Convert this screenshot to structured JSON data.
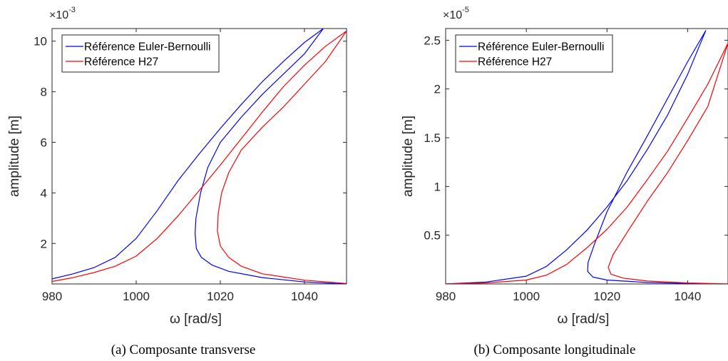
{
  "chart_data": [
    {
      "type": "line",
      "caption": "(a) Composante transverse",
      "xlabel": "ω [rad/s]",
      "ylabel": "amplitude [m]",
      "exponent_base": "×10",
      "exponent": "-3",
      "xlim": [
        980,
        1050
      ],
      "ylim": [
        0.4,
        10.5
      ],
      "xticks": [
        980,
        1000,
        1020,
        1040
      ],
      "xtick_labels": [
        "980",
        "1000",
        "1020",
        "1040"
      ],
      "yticks": [
        2,
        4,
        6,
        8,
        10
      ],
      "ytick_labels": [
        "2",
        "4",
        "6",
        "8",
        "10"
      ],
      "legend_position": "top-left",
      "series": [
        {
          "name": "Référence Euler-Bernoulli",
          "color": "#0000ff",
          "points": [
            [
              980,
              0.6
            ],
            [
              985,
              0.8
            ],
            [
              990,
              1.05
            ],
            [
              995,
              1.45
            ],
            [
              1000,
              2.2
            ],
            [
              1005,
              3.3
            ],
            [
              1010,
              4.5
            ],
            [
              1015,
              5.55
            ],
            [
              1020,
              6.55
            ],
            [
              1025,
              7.5
            ],
            [
              1030,
              8.4
            ],
            [
              1035,
              9.2
            ],
            [
              1040,
              9.95
            ],
            [
              1044.5,
              10.5
            ],
            [
              1040,
              9.5
            ],
            [
              1035,
              8.7
            ],
            [
              1030,
              7.9
            ],
            [
              1025,
              7.0
            ],
            [
              1020,
              6.0
            ],
            [
              1017,
              5.0
            ],
            [
              1015.3,
              4.0
            ],
            [
              1014.2,
              3.0
            ],
            [
              1014.0,
              2.4
            ],
            [
              1014.3,
              1.8
            ],
            [
              1015.5,
              1.45
            ],
            [
              1018,
              1.15
            ],
            [
              1022,
              0.9
            ],
            [
              1030,
              0.65
            ],
            [
              1040,
              0.48
            ],
            [
              1050,
              0.4
            ]
          ]
        },
        {
          "name": "Référence H27",
          "color": "#ff0000",
          "points": [
            [
              980,
              0.5
            ],
            [
              985,
              0.65
            ],
            [
              990,
              0.85
            ],
            [
              995,
              1.1
            ],
            [
              1000,
              1.5
            ],
            [
              1005,
              2.2
            ],
            [
              1010,
              3.1
            ],
            [
              1015,
              4.1
            ],
            [
              1020,
              5.1
            ],
            [
              1025,
              6.15
            ],
            [
              1030,
              7.2
            ],
            [
              1035,
              8.2
            ],
            [
              1040,
              9.05
            ],
            [
              1045,
              9.8
            ],
            [
              1050,
              10.4
            ],
            [
              1045,
              9.2
            ],
            [
              1040,
              8.3
            ],
            [
              1035,
              7.4
            ],
            [
              1030,
              6.6
            ],
            [
              1025,
              5.7
            ],
            [
              1022,
              4.8
            ],
            [
              1020.3,
              4.0
            ],
            [
              1019.5,
              3.2
            ],
            [
              1019.3,
              2.5
            ],
            [
              1020,
              1.9
            ],
            [
              1022,
              1.45
            ],
            [
              1025,
              1.1
            ],
            [
              1030,
              0.8
            ],
            [
              1040,
              0.55
            ],
            [
              1050,
              0.42
            ]
          ]
        }
      ]
    },
    {
      "type": "line",
      "caption": "(b) Composante longitudinale",
      "xlabel": "ω [rad/s]",
      "ylabel": "amplitude [m]",
      "exponent_base": "×10",
      "exponent": "-5",
      "xlim": [
        980,
        1050
      ],
      "ylim": [
        0,
        2.62
      ],
      "xticks": [
        980,
        1000,
        1020,
        1040
      ],
      "xtick_labels": [
        "980",
        "1000",
        "1020",
        "1040"
      ],
      "yticks": [
        0.5,
        1,
        1.5,
        2,
        2.5
      ],
      "ytick_labels": [
        "0.5",
        "1",
        "1.5",
        "2",
        "2.5"
      ],
      "legend_position": "top-left",
      "series": [
        {
          "name": "Référence Euler-Bernoulli",
          "color": "#0000ff",
          "points": [
            [
              980,
              0.0
            ],
            [
              990,
              0.02
            ],
            [
              1000,
              0.08
            ],
            [
              1005,
              0.18
            ],
            [
              1010,
              0.35
            ],
            [
              1015,
              0.55
            ],
            [
              1020,
              0.79
            ],
            [
              1025,
              1.06
            ],
            [
              1030,
              1.38
            ],
            [
              1035,
              1.73
            ],
            [
              1040,
              2.15
            ],
            [
              1044.5,
              2.6
            ],
            [
              1040,
              2.28
            ],
            [
              1035,
              1.9
            ],
            [
              1030,
              1.52
            ],
            [
              1025,
              1.15
            ],
            [
              1020,
              0.74
            ],
            [
              1017,
              0.42
            ],
            [
              1015.3,
              0.22
            ],
            [
              1015.2,
              0.13
            ],
            [
              1016.5,
              0.07
            ],
            [
              1020,
              0.04
            ],
            [
              1030,
              0.015
            ],
            [
              1040,
              0.005
            ],
            [
              1050,
              0.0
            ]
          ]
        },
        {
          "name": "Référence H27",
          "color": "#ff0000",
          "points": [
            [
              980,
              0.0
            ],
            [
              990,
              0.01
            ],
            [
              1000,
              0.04
            ],
            [
              1005,
              0.09
            ],
            [
              1010,
              0.2
            ],
            [
              1015,
              0.37
            ],
            [
              1020,
              0.56
            ],
            [
              1025,
              0.79
            ],
            [
              1030,
              1.07
            ],
            [
              1035,
              1.36
            ],
            [
              1040,
              1.7
            ],
            [
              1045,
              2.05
            ],
            [
              1050,
              2.47
            ],
            [
              1045,
              1.82
            ],
            [
              1040,
              1.47
            ],
            [
              1035,
              1.14
            ],
            [
              1030,
              0.85
            ],
            [
              1025,
              0.53
            ],
            [
              1021.5,
              0.3
            ],
            [
              1020.3,
              0.17
            ],
            [
              1021,
              0.1
            ],
            [
              1024,
              0.06
            ],
            [
              1030,
              0.03
            ],
            [
              1040,
              0.01
            ],
            [
              1050,
              0.0
            ]
          ]
        }
      ]
    }
  ]
}
